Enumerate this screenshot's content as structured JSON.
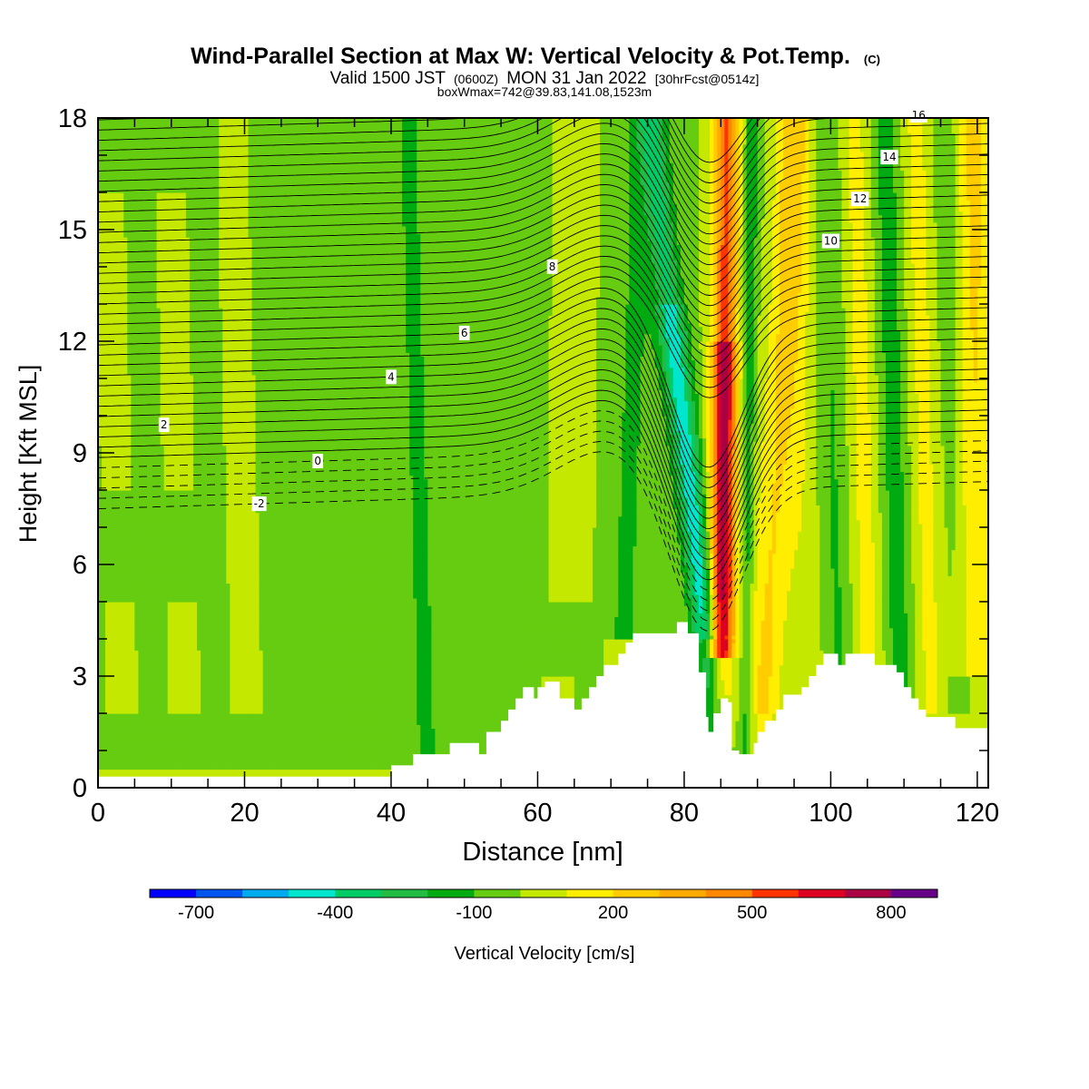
{
  "title": {
    "main": "Wind-Parallel Section at Max W: Vertical Velocity & Pot.Temp.",
    "copyright": "(C)",
    "valid_prefix": "Valid 1500 JST",
    "valid_utc": "(0600Z)",
    "valid_date": "MON 31 Jan 2022",
    "forecast": "[30hrFcst@0514z]",
    "box_info": "boxWmax=742@39.83,141.08,1523m"
  },
  "chart_data": {
    "type": "heatmap",
    "xlabel": "Distance [nm]",
    "ylabel": "Height [Kft MSL]",
    "xlim": [
      0,
      121.5
    ],
    "ylim": [
      0,
      18
    ],
    "x_ticks": [
      "0",
      "20",
      "40",
      "60",
      "80",
      "100",
      "120"
    ],
    "y_ticks": [
      "0",
      "3",
      "6",
      "9",
      "12",
      "15",
      "18"
    ],
    "colorbar": {
      "label": "Vertical Velocity [cm/s]",
      "tick_labels": [
        "-700",
        "-400",
        "-100",
        "200",
        "500",
        "800"
      ],
      "levels": [
        -800,
        -700,
        -600,
        -500,
        -400,
        -300,
        -200,
        -100,
        0,
        100,
        200,
        300,
        400,
        500,
        600,
        700,
        800,
        900
      ],
      "colors": [
        "#0000ff",
        "#0055ee",
        "#00aaee",
        "#00e6cc",
        "#00cc66",
        "#22bb44",
        "#00aa11",
        "#66cc11",
        "#c4e800",
        "#ffee00",
        "#ffcc00",
        "#ffaa00",
        "#ff8800",
        "#ff3300",
        "#dd0022",
        "#aa0044",
        "#660088"
      ]
    },
    "theta_contour_labels": [
      "-2",
      "0",
      "2",
      "4",
      "6",
      "8",
      "10",
      "12",
      "14",
      "16"
    ],
    "terrain": [
      [
        0,
        0.3
      ],
      [
        40,
        0.3
      ],
      [
        40,
        0.6
      ],
      [
        43,
        0.6
      ],
      [
        43,
        0.9
      ],
      [
        48,
        0.9
      ],
      [
        48,
        1.2
      ],
      [
        52,
        1.2
      ],
      [
        52,
        0.9
      ],
      [
        53,
        0.9
      ],
      [
        53,
        1.5
      ],
      [
        55,
        1.5
      ],
      [
        55,
        1.8
      ],
      [
        56,
        1.8
      ],
      [
        56,
        2.1
      ],
      [
        57,
        2.1
      ],
      [
        57,
        2.4
      ],
      [
        58,
        2.4
      ],
      [
        58,
        2.7
      ],
      [
        59.5,
        2.7
      ],
      [
        59.5,
        2.4
      ],
      [
        60,
        2.4
      ],
      [
        60,
        2.7
      ],
      [
        61,
        2.7
      ],
      [
        61,
        2.85
      ],
      [
        63,
        2.85
      ],
      [
        63,
        2.4
      ],
      [
        65,
        2.4
      ],
      [
        65,
        2.1
      ],
      [
        66,
        2.1
      ],
      [
        66,
        2.4
      ],
      [
        67,
        2.4
      ],
      [
        67,
        2.7
      ],
      [
        68,
        2.7
      ],
      [
        68,
        3.0
      ],
      [
        69,
        3.0
      ],
      [
        69,
        3.3
      ],
      [
        71,
        3.3
      ],
      [
        71,
        3.6
      ],
      [
        72,
        3.6
      ],
      [
        72,
        3.9
      ],
      [
        73,
        3.9
      ],
      [
        73,
        4.15
      ],
      [
        79,
        4.15
      ],
      [
        79,
        4.45
      ],
      [
        80.5,
        4.45
      ],
      [
        80.5,
        4.15
      ],
      [
        82,
        4.15
      ],
      [
        82,
        3.1
      ],
      [
        83,
        3.1
      ],
      [
        83,
        1.9
      ],
      [
        83.3,
        1.9
      ],
      [
        83.3,
        1.5
      ],
      [
        84,
        1.5
      ],
      [
        84,
        2.0
      ],
      [
        85,
        2.0
      ],
      [
        85,
        2.4
      ],
      [
        86,
        2.4
      ],
      [
        86,
        2.3
      ],
      [
        86.5,
        2.3
      ],
      [
        86.5,
        1.0
      ],
      [
        87.5,
        1.0
      ],
      [
        87.5,
        0.9
      ],
      [
        89.5,
        0.9
      ],
      [
        89.5,
        1.2
      ],
      [
        90,
        1.2
      ],
      [
        90,
        1.5
      ],
      [
        91,
        1.5
      ],
      [
        91,
        1.8
      ],
      [
        92.5,
        1.8
      ],
      [
        92.5,
        2.1
      ],
      [
        93.5,
        2.1
      ],
      [
        93.5,
        2.5
      ],
      [
        96,
        2.5
      ],
      [
        96,
        2.7
      ],
      [
        97,
        2.7
      ],
      [
        97,
        3.0
      ],
      [
        98,
        3.0
      ],
      [
        98,
        3.3
      ],
      [
        99,
        3.3
      ],
      [
        99,
        3.6
      ],
      [
        101,
        3.6
      ],
      [
        101,
        3.3
      ],
      [
        102,
        3.3
      ],
      [
        102,
        3.6
      ],
      [
        106,
        3.6
      ],
      [
        106,
        3.3
      ],
      [
        109,
        3.3
      ],
      [
        109,
        3.1
      ],
      [
        110,
        3.1
      ],
      [
        110,
        2.7
      ],
      [
        111,
        2.7
      ],
      [
        111,
        2.4
      ],
      [
        112,
        2.4
      ],
      [
        112,
        2.1
      ],
      [
        113,
        2.1
      ],
      [
        113,
        1.9
      ],
      [
        117,
        1.9
      ],
      [
        117,
        1.6
      ],
      [
        121.5,
        1.6
      ]
    ]
  }
}
